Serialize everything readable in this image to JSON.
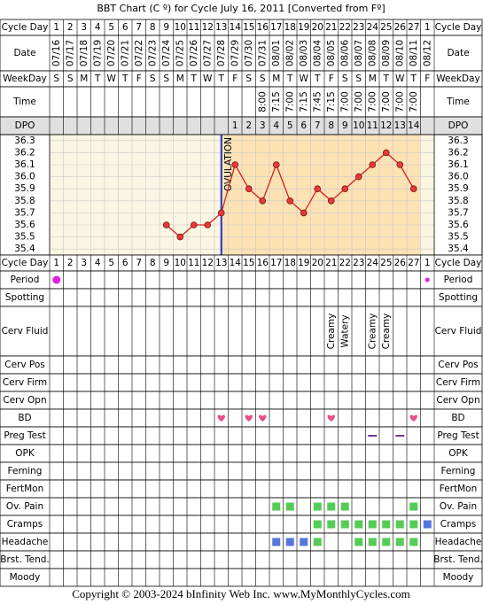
{
  "title": "BBT Chart (C º) for Cycle July 16, 2011  [Converted from Fº]",
  "footer": "Copyright © 2003-2024 bInfinity Web Inc.    www.MyMonthlyCycles.com",
  "rows": {
    "cycle_day": {
      "label": "Cycle Day",
      "values": [
        1,
        2,
        3,
        4,
        5,
        6,
        7,
        8,
        9,
        10,
        11,
        12,
        13,
        14,
        15,
        16,
        17,
        18,
        19,
        20,
        21,
        22,
        23,
        24,
        25,
        26,
        27,
        1
      ]
    },
    "date": {
      "label": "Date",
      "values": [
        "07/16",
        "07/17",
        "07/18",
        "07/19",
        "07/20",
        "07/21",
        "07/22",
        "07/23",
        "07/24",
        "07/25",
        "07/26",
        "07/27",
        "07/28",
        "07/29",
        "07/30",
        "07/31",
        "08/01",
        "08/02",
        "08/03",
        "08/04",
        "08/05",
        "08/06",
        "08/07",
        "08/08",
        "08/09",
        "08/10",
        "08/11",
        "08/12"
      ]
    },
    "weekday": {
      "label": "WeekDay",
      "values": [
        "S",
        "S",
        "M",
        "T",
        "W",
        "T",
        "F",
        "S",
        "S",
        "M",
        "T",
        "W",
        "T",
        "F",
        "S",
        "S",
        "M",
        "T",
        "W",
        "T",
        "F",
        "S",
        "S",
        "M",
        "T",
        "W",
        "T",
        "F"
      ]
    },
    "time": {
      "label": "Time",
      "values": [
        null,
        null,
        null,
        null,
        null,
        null,
        null,
        null,
        null,
        null,
        null,
        null,
        null,
        null,
        null,
        "8:00",
        "7:15",
        "7:00",
        "7:15",
        "7:45",
        "7:15",
        "7:00",
        "7:00",
        "7:00",
        "7:00",
        "7:00",
        "7:00",
        null
      ]
    },
    "dpo": {
      "label": "DPO",
      "values": [
        null,
        null,
        null,
        null,
        null,
        null,
        null,
        null,
        null,
        null,
        null,
        null,
        null,
        1,
        2,
        3,
        4,
        5,
        6,
        7,
        8,
        9,
        10,
        11,
        12,
        13,
        14,
        null
      ]
    }
  },
  "chart_data": {
    "type": "line",
    "color": "#d42020",
    "values": [
      null,
      null,
      null,
      null,
      null,
      null,
      null,
      null,
      35.6,
      35.5,
      35.6,
      35.6,
      35.7,
      36.1,
      35.9,
      35.8,
      36.1,
      35.8,
      35.7,
      35.9,
      35.8,
      35.9,
      36.0,
      36.1,
      36.2,
      36.1,
      35.9,
      null
    ],
    "ylim": [
      35.35,
      36.35
    ],
    "yticks": [
      36.3,
      36.2,
      36.1,
      {
        "value": 36.0,
        "label": "36.0"
      },
      35.9,
      35.8,
      35.7,
      35.6,
      35.5,
      35.4
    ],
    "grid": true,
    "ovulation_day": 13,
    "ovulation_label": "OVULATION",
    "ovulation_color": "#1f2fd0"
  },
  "lower_rows": [
    {
      "label": "Period",
      "marker": "dot",
      "colors": [
        "#e020e0",
        null,
        null,
        null,
        null,
        null,
        null,
        null,
        null,
        null,
        null,
        null,
        null,
        null,
        null,
        null,
        null,
        null,
        null,
        null,
        null,
        null,
        null,
        null,
        null,
        null,
        null,
        "#e020e0"
      ]
    },
    {
      "label": "Spotting"
    },
    {
      "label": "Cerv Fluid",
      "texts": [
        null,
        null,
        null,
        null,
        null,
        null,
        null,
        null,
        null,
        null,
        null,
        null,
        null,
        null,
        null,
        null,
        null,
        null,
        null,
        null,
        "Creamy",
        "Watery",
        null,
        "Creamy",
        "Creamy",
        null,
        null,
        null
      ]
    },
    {
      "label": "Cerv Pos"
    },
    {
      "label": "Cerv Firm"
    },
    {
      "label": "Cerv Opn"
    },
    {
      "label": "BD",
      "marker": "heart",
      "colors": [
        null,
        null,
        null,
        null,
        null,
        null,
        null,
        null,
        null,
        null,
        null,
        null,
        "#e8508a",
        null,
        "#e8508a",
        "#e8508a",
        null,
        null,
        null,
        null,
        "#e8508a",
        null,
        null,
        null,
        null,
        null,
        "#e8508a",
        null
      ]
    },
    {
      "label": "Preg Test",
      "marker": "dash",
      "colors": [
        null,
        null,
        null,
        null,
        null,
        null,
        null,
        null,
        null,
        null,
        null,
        null,
        null,
        null,
        null,
        null,
        null,
        null,
        null,
        null,
        null,
        null,
        null,
        "#6a3aa0",
        null,
        "#6a3aa0",
        null,
        null
      ]
    },
    {
      "label": "OPK"
    },
    {
      "label": "Ferning"
    },
    {
      "label": "FertMon"
    },
    {
      "label": "Ov. Pain",
      "marker": "square",
      "colors": [
        null,
        null,
        null,
        null,
        null,
        null,
        null,
        null,
        null,
        null,
        null,
        null,
        null,
        null,
        null,
        null,
        "#55cc55",
        "#55cc55",
        null,
        "#55cc55",
        "#55cc55",
        "#55cc55",
        null,
        null,
        null,
        null,
        "#55cc55",
        null
      ]
    },
    {
      "label": "Cramps",
      "marker": "square",
      "colors": [
        null,
        null,
        null,
        null,
        null,
        null,
        null,
        null,
        null,
        null,
        null,
        null,
        null,
        null,
        null,
        null,
        null,
        null,
        null,
        "#55cc55",
        "#55cc55",
        "#55cc55",
        "#55cc55",
        "#55cc55",
        "#55cc55",
        "#55cc55",
        "#55cc55",
        "#5577dd"
      ]
    },
    {
      "label": "Headache",
      "marker": "square",
      "colors": [
        null,
        null,
        null,
        null,
        null,
        null,
        null,
        null,
        null,
        null,
        null,
        null,
        null,
        null,
        null,
        null,
        "#5577dd",
        "#5577dd",
        "#5577dd",
        "#55cc55",
        null,
        null,
        "#55cc55",
        "#55cc55",
        "#55cc55",
        "#55cc55",
        "#55cc55",
        null
      ]
    },
    {
      "label": "Brst. Tend."
    },
    {
      "label": "Moody"
    }
  ]
}
